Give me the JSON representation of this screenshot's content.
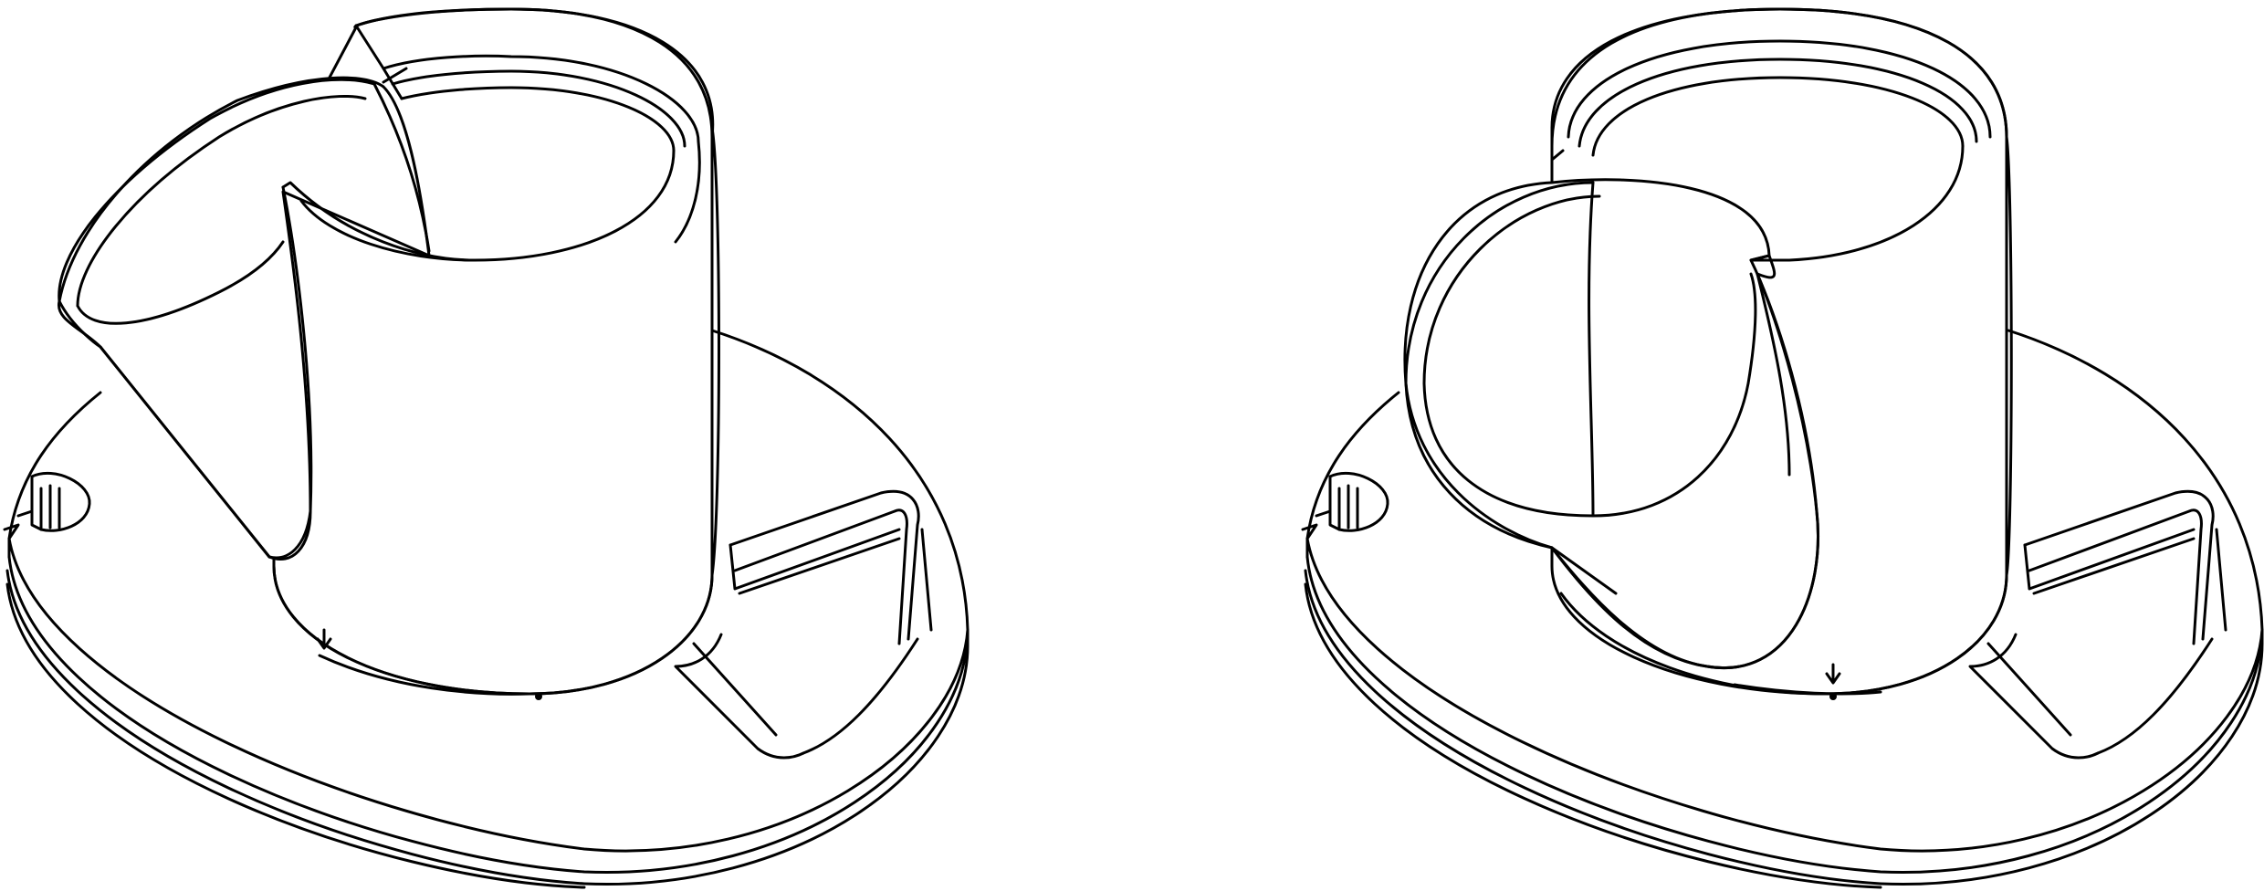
{
  "figure": {
    "views": [
      {
        "id": "left",
        "description_visible": false
      },
      {
        "id": "right",
        "description_visible": false
      }
    ],
    "line_color": "#000000",
    "background_color": "#ffffff"
  }
}
